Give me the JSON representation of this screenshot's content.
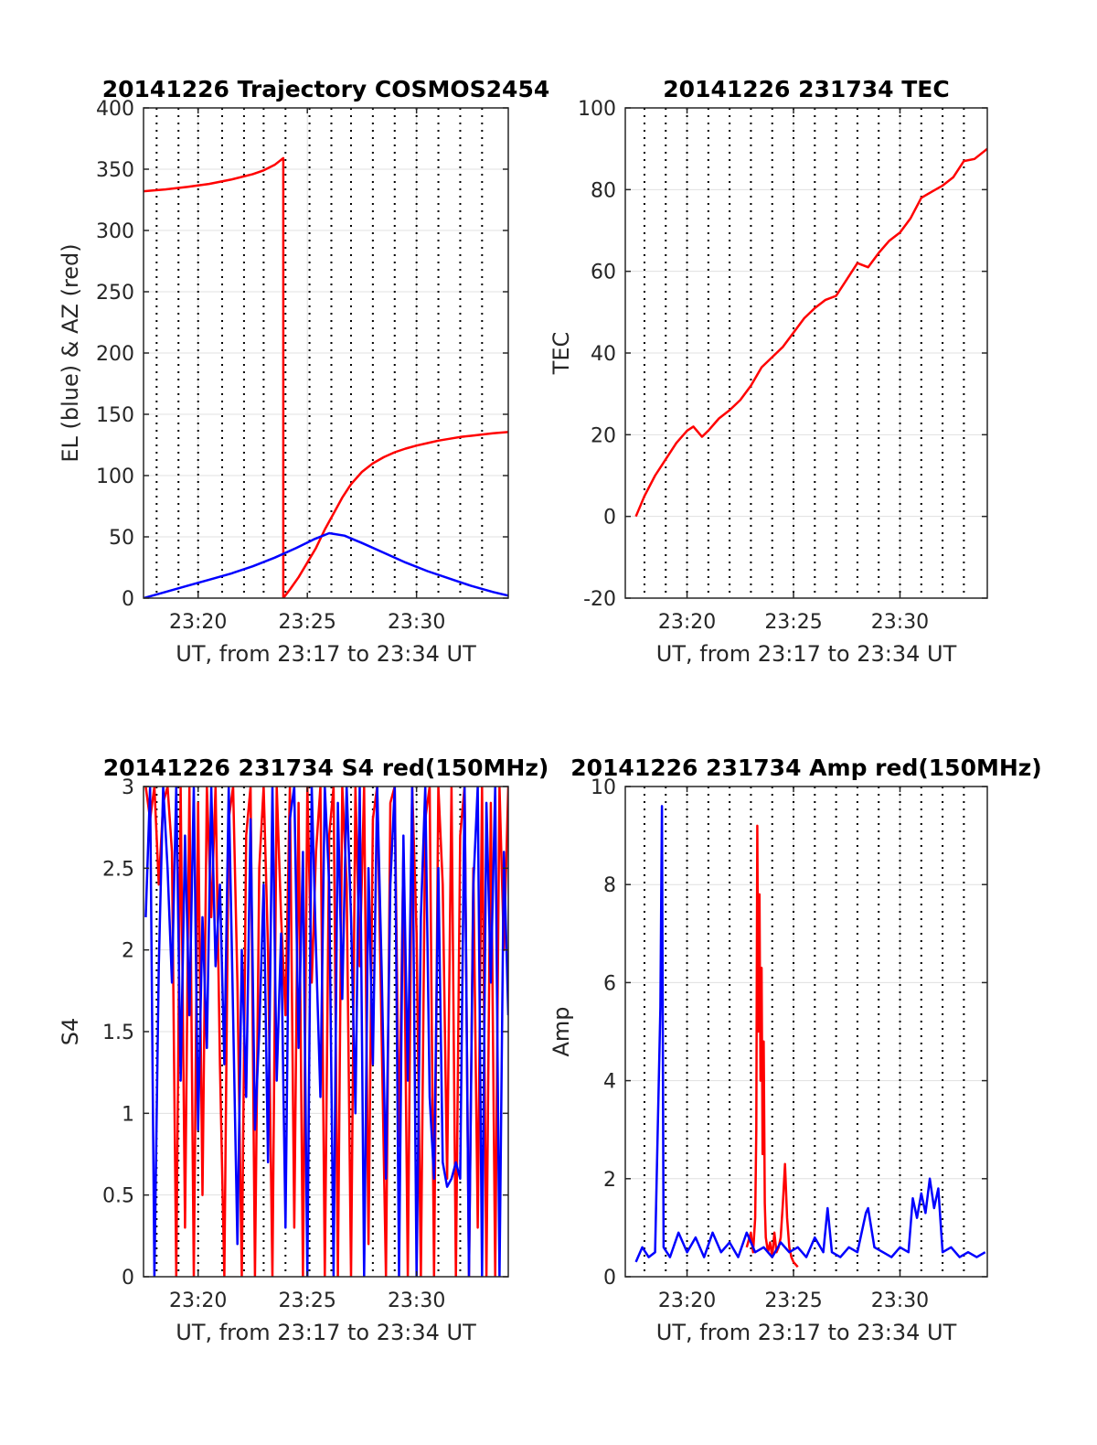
{
  "chart_data": [
    {
      "id": "trajectory",
      "type": "line",
      "title": "20141226 Trajectory COSMOS2454",
      "xlabel": "UT, from 23:17 to 23:34 UT",
      "ylabel": "EL (blue) & AZ (red)",
      "x_unit": "minutes past 23:00 UT",
      "xlim": [
        17.5,
        34.2
      ],
      "ylim": [
        0,
        400
      ],
      "xticks": [
        20,
        25,
        30
      ],
      "xtick_labels": [
        "23:20",
        "23:25",
        "23:30"
      ],
      "yticks": [
        0,
        50,
        100,
        150,
        200,
        250,
        300,
        350,
        400
      ],
      "ytick_labels": [
        "0",
        "50",
        "100",
        "150",
        "200",
        "250",
        "300",
        "350",
        "400"
      ],
      "minor_xticks": [
        18.1,
        19.1,
        20.0,
        21.1,
        22.1,
        23.0,
        24.0,
        25.1,
        26.1,
        27.0,
        28.0,
        29.0,
        30.0,
        31.0,
        32.0,
        33.0
      ],
      "grid": true,
      "series": [
        {
          "color": "#ff0000",
          "x": [
            17.5,
            18.5,
            19.5,
            20.5,
            21.5,
            22.5,
            23.0,
            23.5,
            23.9,
            23.9,
            24.2,
            24.6,
            25.0,
            25.4,
            25.8,
            26.2,
            26.6,
            27.0,
            27.5,
            28.0,
            28.5,
            29.0,
            29.5,
            30.0,
            30.5,
            31.0,
            31.5,
            32.0,
            32.5,
            33.0,
            33.5,
            34.2
          ],
          "y": [
            332,
            333.5,
            335.5,
            338,
            341.5,
            346,
            349,
            353.5,
            359,
            0,
            7,
            17,
            29,
            41,
            56,
            69,
            82,
            93,
            103,
            110,
            115,
            119,
            122,
            124.5,
            126.5,
            128.5,
            130,
            131.5,
            132.5,
            133.5,
            134.5,
            135.5
          ]
        },
        {
          "color": "#0000ff",
          "x": [
            17.5,
            18.5,
            19.5,
            20.5,
            21.5,
            22.5,
            23.5,
            24.5,
            25.3,
            26.0,
            26.7,
            27.5,
            28.5,
            29.5,
            30.5,
            31.5,
            32.5,
            33.5,
            34.2
          ],
          "y": [
            0,
            5,
            10,
            15,
            20,
            26,
            33,
            41,
            48,
            53,
            51,
            45,
            37,
            29,
            22,
            16,
            10,
            5,
            2
          ]
        }
      ]
    },
    {
      "id": "tec",
      "type": "line",
      "title": "20141226 231734 TEC",
      "xlabel": "UT, from 23:17 to 23:34 UT",
      "ylabel": "TEC",
      "x_unit": "minutes past 23:00 UT",
      "xlim": [
        17.1,
        34.1
      ],
      "ylim": [
        -20,
        100
      ],
      "xticks": [
        20,
        25,
        30
      ],
      "xtick_labels": [
        "23:20",
        "23:25",
        "23:30"
      ],
      "yticks": [
        -20,
        0,
        20,
        40,
        60,
        80,
        100
      ],
      "ytick_labels": [
        "-20",
        "0",
        "20",
        "40",
        "60",
        "80",
        "100"
      ],
      "minor_xticks": [
        18.0,
        19.0,
        20.0,
        21.0,
        22.0,
        23.0,
        24.0,
        25.0,
        26.0,
        27.0,
        28.0,
        29.0,
        30.0,
        31.0,
        32.0,
        33.0
      ],
      "grid": true,
      "series": [
        {
          "color": "#ff0000",
          "x": [
            17.6,
            18.0,
            18.5,
            19.0,
            19.5,
            20.0,
            20.3,
            20.7,
            21.0,
            21.5,
            22.0,
            22.5,
            23.0,
            23.5,
            24.0,
            24.5,
            25.0,
            25.5,
            26.0,
            26.5,
            27.0,
            27.5,
            28.0,
            28.5,
            29.0,
            29.5,
            30.0,
            30.5,
            31.0,
            31.5,
            32.0,
            32.5,
            33.0,
            33.5,
            34.1
          ],
          "y": [
            0,
            5,
            10,
            14,
            18,
            21,
            22,
            19.5,
            21,
            24,
            26,
            28.5,
            32,
            36.5,
            39,
            41.5,
            45,
            48.5,
            51,
            53,
            54,
            58,
            62,
            61,
            64.5,
            67.5,
            69.5,
            73,
            78,
            79.5,
            81,
            83,
            87,
            87.5,
            90
          ]
        }
      ]
    },
    {
      "id": "s4",
      "type": "line",
      "title": "20141226 231734 S4 red(150MHz)",
      "xlabel": "UT, from 23:17 to 23:34 UT",
      "ylabel": "S4",
      "x_unit": "minutes past 23:00 UT",
      "xlim": [
        17.5,
        34.2
      ],
      "ylim": [
        0,
        3
      ],
      "xticks": [
        20,
        25,
        30
      ],
      "xtick_labels": [
        "23:20",
        "23:25",
        "23:30"
      ],
      "yticks": [
        0,
        0.5,
        1,
        1.5,
        2,
        2.5,
        3
      ],
      "ytick_labels": [
        "0",
        "0.5",
        "1",
        "1.5",
        "2",
        "2.5",
        "3"
      ],
      "minor_xticks": [
        18.1,
        19.1,
        20.0,
        21.1,
        22.1,
        23.0,
        24.0,
        25.1,
        26.1,
        27.0,
        28.0,
        29.0,
        30.0,
        31.0,
        32.0,
        33.0
      ],
      "grid": true,
      "series": [
        {
          "color": "#ff0000",
          "x": [
            17.6,
            17.8,
            18.0,
            18.2,
            18.4,
            18.6,
            18.8,
            19.0,
            19.2,
            19.4,
            19.6,
            19.8,
            20.0,
            20.2,
            20.4,
            20.6,
            20.8,
            21.0,
            21.2,
            21.4,
            21.6,
            21.8,
            22.0,
            22.2,
            22.4,
            22.6,
            22.8,
            23.0,
            23.2,
            23.4,
            23.6,
            23.8,
            24.0,
            24.2,
            24.4,
            24.6,
            24.8,
            25.0,
            25.2,
            25.4,
            25.6,
            25.8,
            26.0,
            26.2,
            26.4,
            26.6,
            26.8,
            27.0,
            27.2,
            27.4,
            27.6,
            27.8,
            28.0,
            28.2,
            28.4,
            28.6,
            28.8,
            29.0,
            29.2,
            29.4,
            29.6,
            29.8,
            30.0,
            30.2,
            30.4,
            30.6,
            30.8,
            31.0,
            31.2,
            31.4,
            31.6,
            31.8,
            32.0,
            32.2,
            32.4,
            32.6,
            32.8,
            33.0,
            33.2,
            33.4,
            33.6,
            33.8,
            34.0,
            34.2
          ],
          "y": [
            3.0,
            2.8,
            3.0,
            2.4,
            2.9,
            3.0,
            2.6,
            0.0,
            3.0,
            0.3,
            3.0,
            0.0,
            2.9,
            0.5,
            3.0,
            2.2,
            3.0,
            1.3,
            0.0,
            2.8,
            3.0,
            1.8,
            0.0,
            2.7,
            3.0,
            0.0,
            2.5,
            3.0,
            2.0,
            0.0,
            3.0,
            2.2,
            1.6,
            3.0,
            0.3,
            2.9,
            0.0,
            3.0,
            1.8,
            2.6,
            3.0,
            0.0,
            2.7,
            3.0,
            0.0,
            3.0,
            2.4,
            0.0,
            3.0,
            1.9,
            3.0,
            0.2,
            2.8,
            3.0,
            1.5,
            0.0,
            2.9,
            3.0,
            0.8,
            2.6,
            0.0,
            3.0,
            2.1,
            0.0,
            2.8,
            3.0,
            0.0,
            3.0,
            2.4,
            0.6,
            3.0,
            0.0,
            2.7,
            3.0,
            0.0,
            2.5,
            0.3,
            3.0,
            0.0,
            2.9,
            0.0,
            3.0,
            2.0,
            3.0
          ]
        },
        {
          "color": "#0000ff",
          "x": [
            17.6,
            17.8,
            18.0,
            18.2,
            18.4,
            18.6,
            18.8,
            19.0,
            19.2,
            19.4,
            19.6,
            19.8,
            20.0,
            20.2,
            20.4,
            20.6,
            20.8,
            21.0,
            21.2,
            21.4,
            21.6,
            21.8,
            22.0,
            22.2,
            22.4,
            22.6,
            22.8,
            23.0,
            23.2,
            23.4,
            23.6,
            23.8,
            24.0,
            24.2,
            24.4,
            24.6,
            24.8,
            25.0,
            25.2,
            25.4,
            25.6,
            25.8,
            26.0,
            26.2,
            26.4,
            26.6,
            26.8,
            27.0,
            27.2,
            27.4,
            27.6,
            27.8,
            28.0,
            28.2,
            28.4,
            28.6,
            28.8,
            29.0,
            29.2,
            29.4,
            29.6,
            29.8,
            30.0,
            30.2,
            30.4,
            30.6,
            30.8,
            31.0,
            31.2,
            31.4,
            31.6,
            31.8,
            32.0,
            32.2,
            32.4,
            32.6,
            32.8,
            33.0,
            33.2,
            33.4,
            33.6,
            33.8,
            34.0,
            34.2
          ],
          "y": [
            2.2,
            3.0,
            0.0,
            1.9,
            3.0,
            2.5,
            1.8,
            3.0,
            1.2,
            2.7,
            1.6,
            3.0,
            0.9,
            2.2,
            1.4,
            3.0,
            1.9,
            2.4,
            1.3,
            3.0,
            1.6,
            0.2,
            2.0,
            1.1,
            2.8,
            0.9,
            1.5,
            2.4,
            0.7,
            3.0,
            1.2,
            2.1,
            0.3,
            2.8,
            3.0,
            1.4,
            2.6,
            0.0,
            3.0,
            2.0,
            1.1,
            3.0,
            2.4,
            0.0,
            2.9,
            1.7,
            3.0,
            2.2,
            1.0,
            3.0,
            0.0,
            2.5,
            1.3,
            3.0,
            1.9,
            0.6,
            2.4,
            3.0,
            0.0,
            2.7,
            1.2,
            3.0,
            0.0,
            2.2,
            3.0,
            1.1,
            0.6,
            2.5,
            0.7,
            0.55,
            0.6,
            0.7,
            0.6,
            3.0,
            0.0,
            2.4,
            3.0,
            0.0,
            2.9,
            1.8,
            3.0,
            0.0,
            2.6,
            1.6
          ]
        }
      ]
    },
    {
      "id": "amp",
      "type": "line",
      "title": "20141226 231734 Amp red(150MHz)",
      "xlabel": "UT, from 23:17 to 23:34 UT",
      "ylabel": "Amp",
      "x_unit": "minutes past 23:00 UT",
      "xlim": [
        17.1,
        34.1
      ],
      "ylim": [
        0,
        10
      ],
      "xticks": [
        20,
        25,
        30
      ],
      "xtick_labels": [
        "23:20",
        "23:25",
        "23:30"
      ],
      "yticks": [
        0,
        2,
        4,
        6,
        8,
        10
      ],
      "ytick_labels": [
        "0",
        "2",
        "4",
        "6",
        "8",
        "10"
      ],
      "minor_xticks": [
        18.0,
        19.0,
        20.0,
        21.0,
        22.0,
        23.0,
        24.0,
        25.0,
        26.0,
        27.0,
        28.0,
        29.0,
        30.0,
        31.0,
        32.0,
        33.0
      ],
      "grid": true,
      "series": [
        {
          "color": "#ff0000",
          "x": [
            22.8,
            23.0,
            23.1,
            23.2,
            23.25,
            23.3,
            23.35,
            23.4,
            23.45,
            23.5,
            23.55,
            23.6,
            23.65,
            23.7,
            23.8,
            23.9,
            24.0,
            24.1,
            24.2,
            24.3,
            24.4,
            24.5,
            24.6,
            24.7,
            24.8,
            24.9,
            25.0,
            25.2
          ],
          "y": [
            0.6,
            0.9,
            0.5,
            1.2,
            3.0,
            9.2,
            5.0,
            7.8,
            4.0,
            6.3,
            2.5,
            4.8,
            1.5,
            0.8,
            0.5,
            0.7,
            0.4,
            0.9,
            0.5,
            0.6,
            0.8,
            1.5,
            2.3,
            1.2,
            0.6,
            0.4,
            0.3,
            0.2
          ]
        },
        {
          "color": "#0000ff",
          "x": [
            17.6,
            17.9,
            18.2,
            18.5,
            18.75,
            18.82,
            18.9,
            19.2,
            19.6,
            20.0,
            20.4,
            20.8,
            21.2,
            21.6,
            22.0,
            22.4,
            22.8,
            23.2,
            23.6,
            24.0,
            24.4,
            24.8,
            25.2,
            25.6,
            26.0,
            26.4,
            26.6,
            26.8,
            27.2,
            27.6,
            28.0,
            28.4,
            28.5,
            28.8,
            29.2,
            29.6,
            30.0,
            30.4,
            30.6,
            30.8,
            31.0,
            31.2,
            31.4,
            31.6,
            31.8,
            32.0,
            32.4,
            32.8,
            33.2,
            33.6,
            34.0
          ],
          "y": [
            0.3,
            0.6,
            0.4,
            0.5,
            5.5,
            9.6,
            0.6,
            0.4,
            0.9,
            0.5,
            0.8,
            0.4,
            0.9,
            0.5,
            0.7,
            0.4,
            0.9,
            0.5,
            0.6,
            0.4,
            0.7,
            0.5,
            0.6,
            0.4,
            0.8,
            0.5,
            1.4,
            0.5,
            0.4,
            0.6,
            0.5,
            1.3,
            1.4,
            0.6,
            0.5,
            0.4,
            0.6,
            0.5,
            1.6,
            1.2,
            1.7,
            1.3,
            2.0,
            1.4,
            1.8,
            0.5,
            0.6,
            0.4,
            0.5,
            0.4,
            0.5
          ]
        }
      ]
    }
  ]
}
